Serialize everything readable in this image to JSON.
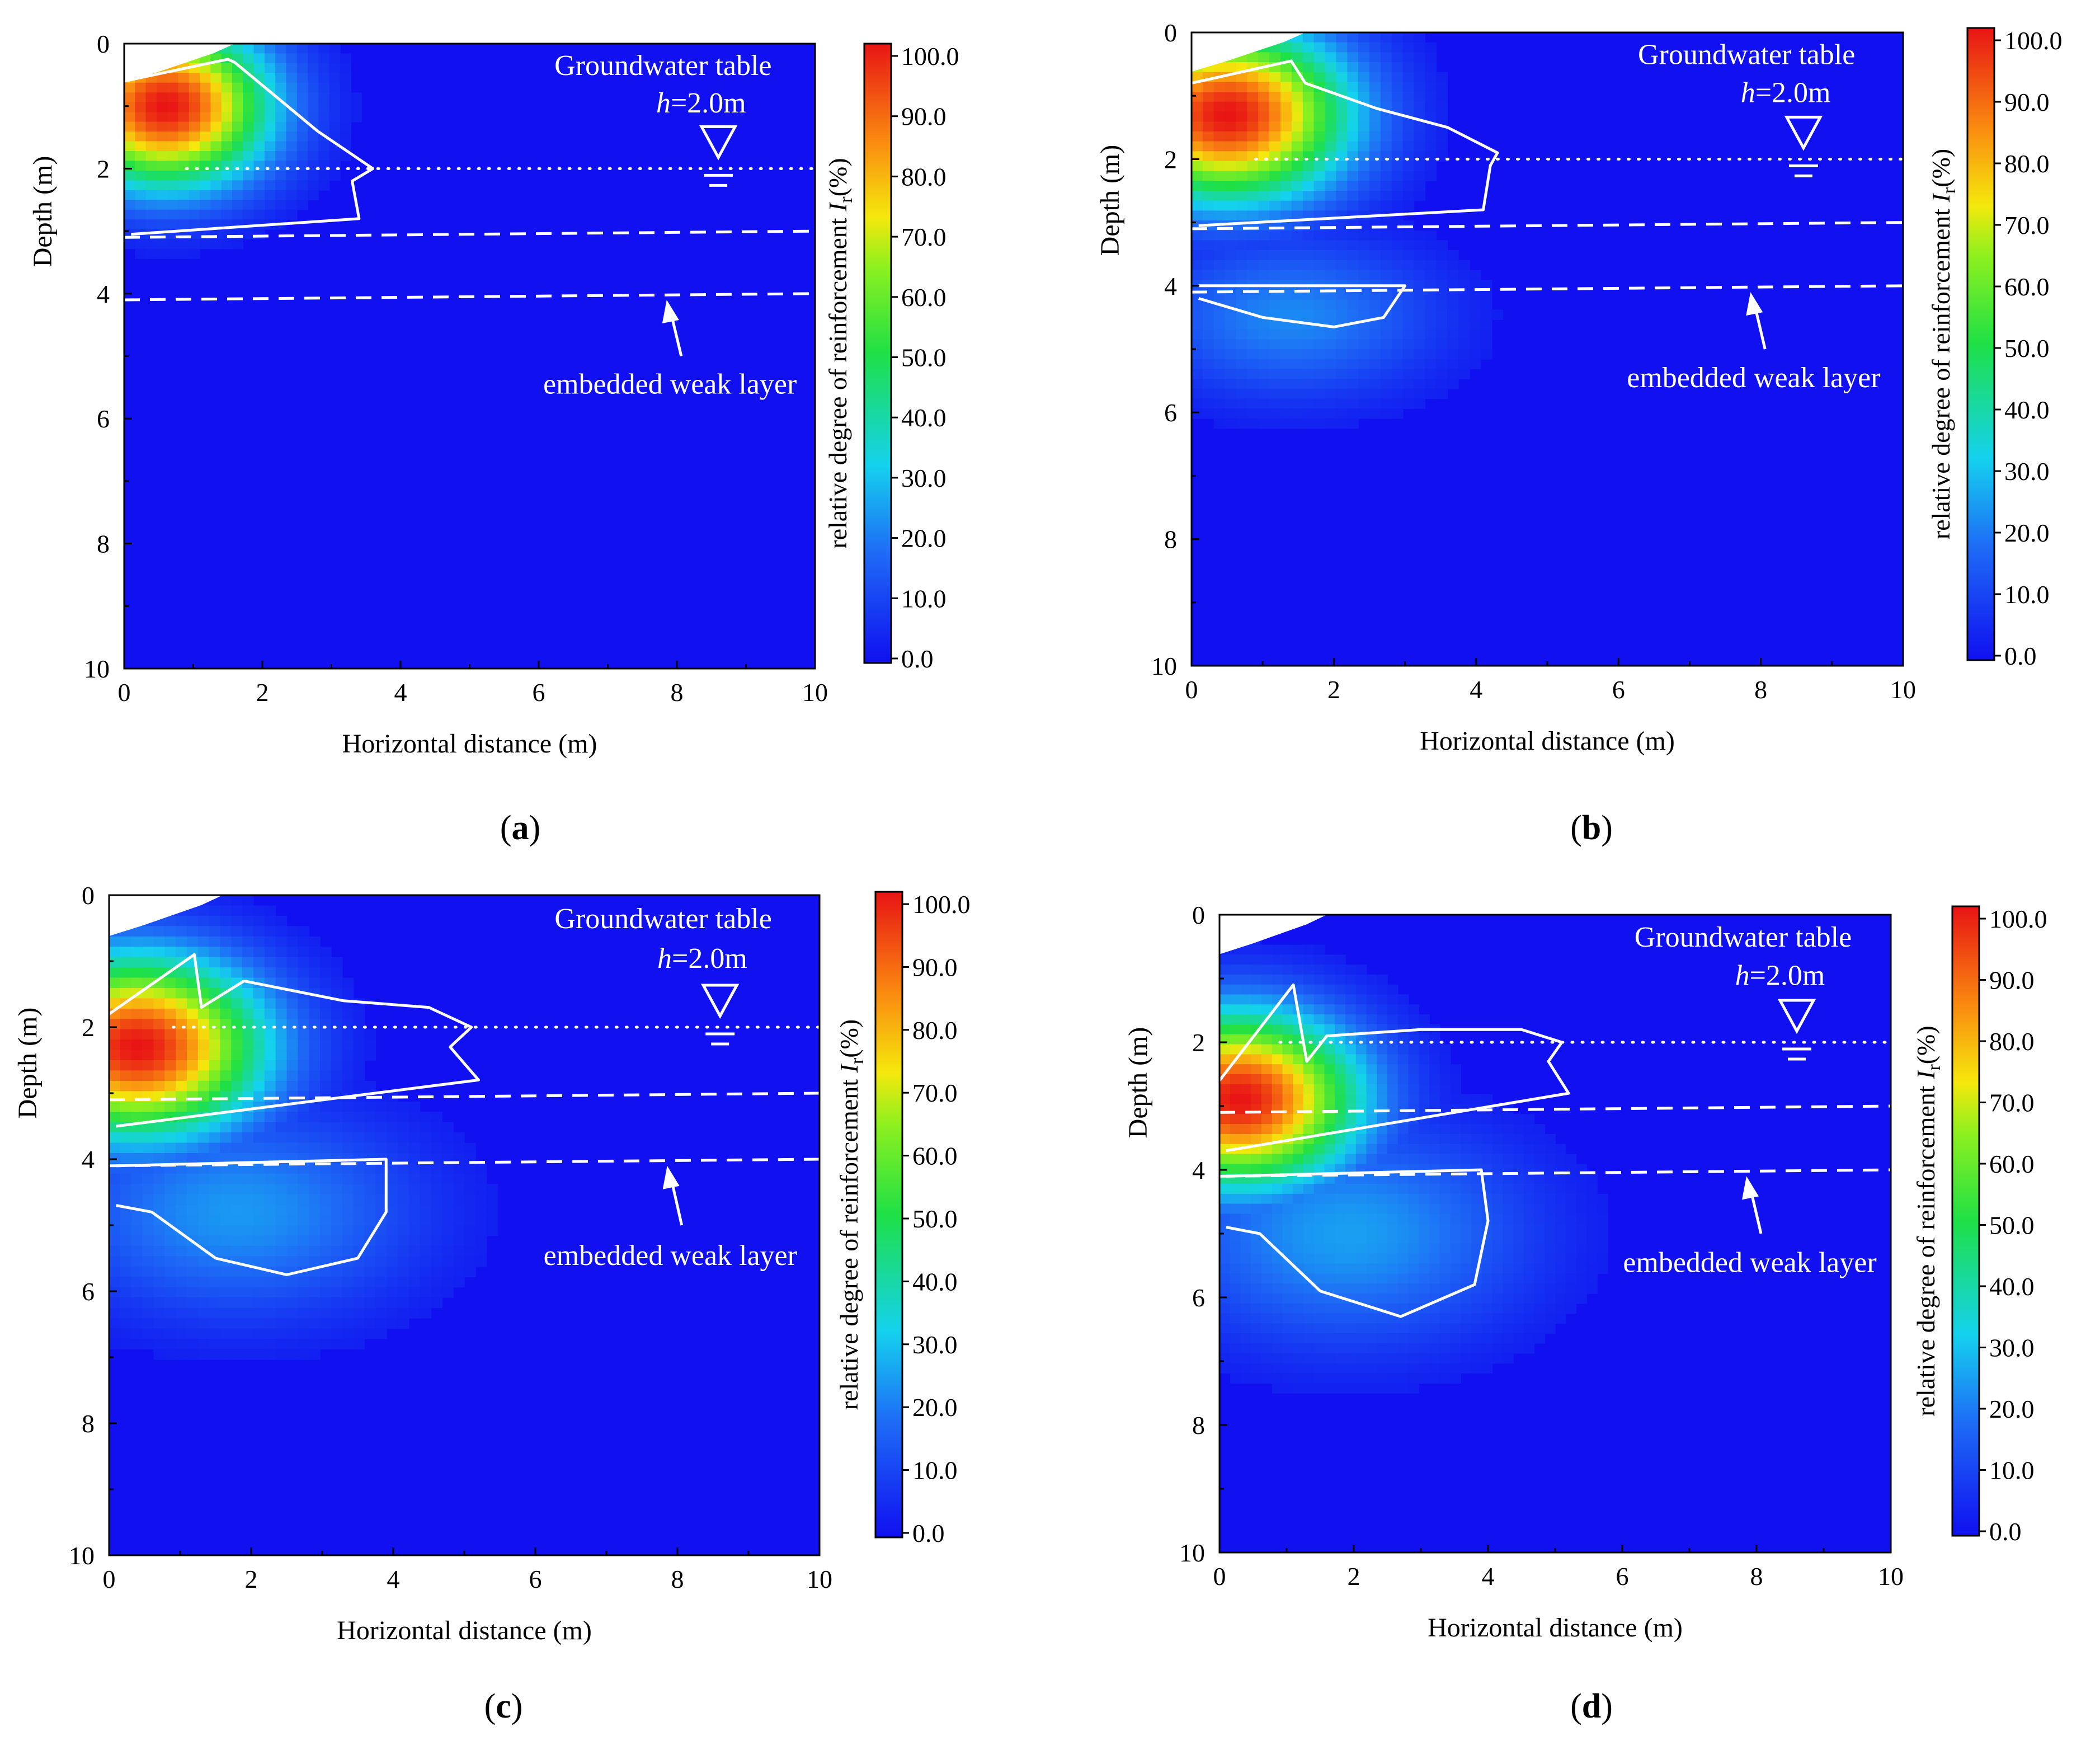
{
  "figure": {
    "panel_count": 4
  },
  "chart_data": [
    {
      "type": "heatmap",
      "panel_label": "a",
      "title": "",
      "xlabel": "Horizontal distance  (m)",
      "ylabel": "Depth (m)",
      "xlim": [
        0,
        10
      ],
      "ylim": [
        10,
        0
      ],
      "x_ticks": [
        "0",
        "2",
        "4",
        "6",
        "8",
        "10"
      ],
      "y_ticks": [
        "0",
        "2",
        "4",
        "6",
        "8",
        "10"
      ],
      "colorbar": {
        "label_pre": "relative degree of reinforcement ",
        "label_var": "I",
        "label_sub": "r",
        "label_post": "(%)",
        "min": 0,
        "max": 100,
        "ticks": [
          "0.0",
          "10.0",
          "20.0",
          "30.0",
          "40.0",
          "50.0",
          "60.0",
          "70.0",
          "80.0",
          "90.0",
          "100.0"
        ]
      },
      "annotations": {
        "groundwater_title": "Groundwater table",
        "h_var": "h",
        "h_value": "=2.0m",
        "weak_layer": "embedded weak layer"
      },
      "groundwater_depth": 2.0,
      "weak_layer_depths": [
        3.0,
        4.0
      ],
      "hot_spot": {
        "x": 0.6,
        "depth": 1.0,
        "peak": 100,
        "spread_x": 2.2,
        "spread_y": 1.9
      },
      "lower_bulb": null,
      "zone_contours": [
        [
          [
            0,
            0.6
          ],
          [
            1.5,
            0.25
          ],
          [
            1.6,
            0.3
          ],
          [
            2.8,
            1.4
          ],
          [
            3.6,
            2.0
          ],
          [
            3.3,
            2.2
          ],
          [
            3.4,
            2.8
          ],
          [
            0.1,
            3.05
          ]
        ]
      ]
    },
    {
      "type": "heatmap",
      "panel_label": "b",
      "title": "",
      "xlabel": "Horizontal distance  (m)",
      "ylabel": "Depth (m)",
      "xlim": [
        0,
        10
      ],
      "ylim": [
        10,
        0
      ],
      "x_ticks": [
        "0",
        "2",
        "4",
        "6",
        "8",
        "10"
      ],
      "y_ticks": [
        "0",
        "2",
        "4",
        "6",
        "8",
        "10"
      ],
      "colorbar": {
        "label_pre": "relative degree of reinforcement ",
        "label_var": "I",
        "label_sub": "r",
        "label_post": "(%)",
        "min": 0,
        "max": 100,
        "ticks": [
          "0.0",
          "10.0",
          "20.0",
          "30.0",
          "40.0",
          "50.0",
          "60.0",
          "70.0",
          "80.0",
          "90.0",
          "100.0"
        ]
      },
      "annotations": {
        "groundwater_title": "Groundwater table",
        "h_var": "h",
        "h_value": "=2.0m",
        "weak_layer": "embedded weak layer"
      },
      "groundwater_depth": 2.0,
      "weak_layer_depths": [
        3.0,
        4.0
      ],
      "hot_spot": {
        "x": 0.5,
        "depth": 1.3,
        "peak": 100,
        "spread_x": 2.5,
        "spread_y": 2.0
      },
      "lower_bulb": {
        "x": 1.4,
        "depth": 4.5,
        "peak": 22,
        "spread_x": 2.6,
        "spread_y": 1.6
      },
      "zone_contours": [
        [
          [
            0,
            0.8
          ],
          [
            1.4,
            0.45
          ],
          [
            1.6,
            0.8
          ],
          [
            2.6,
            1.2
          ],
          [
            3.6,
            1.5
          ],
          [
            4.3,
            1.9
          ],
          [
            4.2,
            2.1
          ],
          [
            4.1,
            2.8
          ],
          [
            0.1,
            3.05
          ]
        ],
        [
          [
            0.1,
            4.0
          ],
          [
            3.0,
            4.0
          ],
          [
            2.7,
            4.5
          ],
          [
            2.0,
            4.65
          ],
          [
            1.0,
            4.5
          ],
          [
            0.1,
            4.2
          ]
        ]
      ]
    },
    {
      "type": "heatmap",
      "panel_label": "c",
      "title": "",
      "xlabel": "Horizontal distance  (m)",
      "ylabel": "Depth (m)",
      "xlim": [
        0,
        10
      ],
      "ylim": [
        10,
        0
      ],
      "x_ticks": [
        "0",
        "2",
        "4",
        "6",
        "8",
        "10"
      ],
      "y_ticks": [
        "0",
        "2",
        "4",
        "6",
        "8",
        "10"
      ],
      "colorbar": {
        "label_pre": "relative degree of reinforcement ",
        "label_var": "I",
        "label_sub": "r",
        "label_post": "(%)",
        "min": 0,
        "max": 100,
        "ticks": [
          "0.0",
          "10.0",
          "20.0",
          "30.0",
          "40.0",
          "50.0",
          "60.0",
          "70.0",
          "80.0",
          "90.0",
          "100.0"
        ]
      },
      "annotations": {
        "groundwater_title": "Groundwater table",
        "h_var": "h",
        "h_value": "=2.0m",
        "weak_layer": "embedded weak layer"
      },
      "groundwater_depth": 2.0,
      "weak_layer_depths": [
        3.0,
        4.0
      ],
      "hot_spot": {
        "x": 0.4,
        "depth": 2.3,
        "peak": 100,
        "spread_x": 2.6,
        "spread_y": 2.0
      },
      "lower_bulb": {
        "x": 1.8,
        "depth": 4.8,
        "peak": 24,
        "spread_x": 3.2,
        "spread_y": 2.0
      },
      "zone_contours": [
        [
          [
            0,
            1.8
          ],
          [
            1.2,
            0.9
          ],
          [
            1.3,
            1.7
          ],
          [
            1.9,
            1.3
          ],
          [
            3.3,
            1.6
          ],
          [
            4.5,
            1.7
          ],
          [
            5.1,
            2.0
          ],
          [
            4.8,
            2.3
          ],
          [
            5.2,
            2.8
          ],
          [
            0.1,
            3.5
          ]
        ],
        [
          [
            0.1,
            4.1
          ],
          [
            3.9,
            4.0
          ],
          [
            3.9,
            4.8
          ],
          [
            3.5,
            5.5
          ],
          [
            2.5,
            5.75
          ],
          [
            1.5,
            5.5
          ],
          [
            0.6,
            4.8
          ],
          [
            0.1,
            4.7
          ]
        ]
      ]
    },
    {
      "type": "heatmap",
      "panel_label": "d",
      "title": "",
      "xlabel": "Horizontal distance  (m)",
      "ylabel": "Depth (m)",
      "xlim": [
        0,
        10
      ],
      "ylim": [
        10,
        0
      ],
      "x_ticks": [
        "0",
        "2",
        "4",
        "6",
        "8",
        "10"
      ],
      "y_ticks": [
        "0",
        "2",
        "4",
        "6",
        "8",
        "10"
      ],
      "colorbar": {
        "label_pre": "relative degree of reinforcement ",
        "label_var": "I",
        "label_sub": "r",
        "label_post": "(%)",
        "min": 0,
        "max": 100,
        "ticks": [
          "0.0",
          "10.0",
          "20.0",
          "30.0",
          "40.0",
          "50.0",
          "60.0",
          "70.0",
          "80.0",
          "90.0",
          "100.0"
        ]
      },
      "annotations": {
        "groundwater_title": "Groundwater table",
        "h_var": "h",
        "h_value": "=2.0m",
        "weak_layer": "embedded weak layer"
      },
      "groundwater_depth": 2.0,
      "weak_layer_depths": [
        3.0,
        4.0
      ],
      "hot_spot": {
        "x": 0.3,
        "depth": 2.9,
        "peak": 100,
        "spread_x": 2.6,
        "spread_y": 2.0
      },
      "lower_bulb": {
        "x": 1.9,
        "depth": 5.0,
        "peak": 25,
        "spread_x": 3.4,
        "spread_y": 2.2
      },
      "zone_contours": [
        [
          [
            0,
            2.6
          ],
          [
            1.1,
            1.1
          ],
          [
            1.3,
            2.3
          ],
          [
            1.6,
            1.9
          ],
          [
            3.0,
            1.8
          ],
          [
            4.5,
            1.8
          ],
          [
            5.1,
            2.0
          ],
          [
            4.9,
            2.3
          ],
          [
            5.2,
            2.8
          ],
          [
            0.1,
            3.7
          ]
        ],
        [
          [
            0.1,
            4.1
          ],
          [
            3.9,
            4.0
          ],
          [
            4.0,
            4.8
          ],
          [
            3.8,
            5.8
          ],
          [
            2.7,
            6.3
          ],
          [
            1.5,
            5.9
          ],
          [
            0.6,
            5.0
          ],
          [
            0.1,
            4.9
          ]
        ]
      ]
    }
  ]
}
